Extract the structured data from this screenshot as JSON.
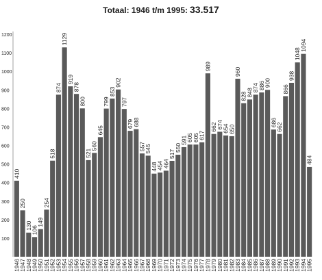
{
  "chart_data": {
    "type": "bar",
    "title": "Totaal: 1946 t/m 1995:",
    "total": "33.517",
    "xlabel": "",
    "ylabel": "",
    "ylim": [
      0,
      1200
    ],
    "yticks": [
      100,
      200,
      300,
      400,
      500,
      600,
      700,
      800,
      900,
      1000,
      1100,
      1200
    ],
    "grid": false,
    "colors": {
      "bar": "#5a5a5a",
      "text": "#222222",
      "axis": "#888888"
    },
    "categories": [
      "1946",
      "1947",
      "1948",
      "1949",
      "1950",
      "1951",
      "1952",
      "1953",
      "1954",
      "1955",
      "1956",
      "1957",
      "1958",
      "1959",
      "1960",
      "1961",
      "1962",
      "1963",
      "1964",
      "1965",
      "1966",
      "1967",
      "1968",
      "1969",
      "1970",
      "1971",
      "1972",
      "1973",
      "1974",
      "1975",
      "1976",
      "1977",
      "1978",
      "1979",
      "1980",
      "1981",
      "1982",
      "1983",
      "1984",
      "1985",
      "1986",
      "1987",
      "1988",
      "1989",
      "1990",
      "1991",
      "1992",
      "1993",
      "1994",
      "1995"
    ],
    "values": [
      410,
      250,
      130,
      106,
      149,
      254,
      518,
      874,
      1129,
      919,
      878,
      800,
      521,
      560,
      645,
      799,
      853,
      902,
      797,
      679,
      688,
      557,
      545,
      448,
      454,
      464,
      517,
      550,
      591,
      605,
      605,
      617,
      989,
      662,
      674,
      654,
      650,
      960,
      828,
      848,
      874,
      886,
      900,
      686,
      662,
      866,
      938,
      1048,
      1094,
      484
    ]
  }
}
